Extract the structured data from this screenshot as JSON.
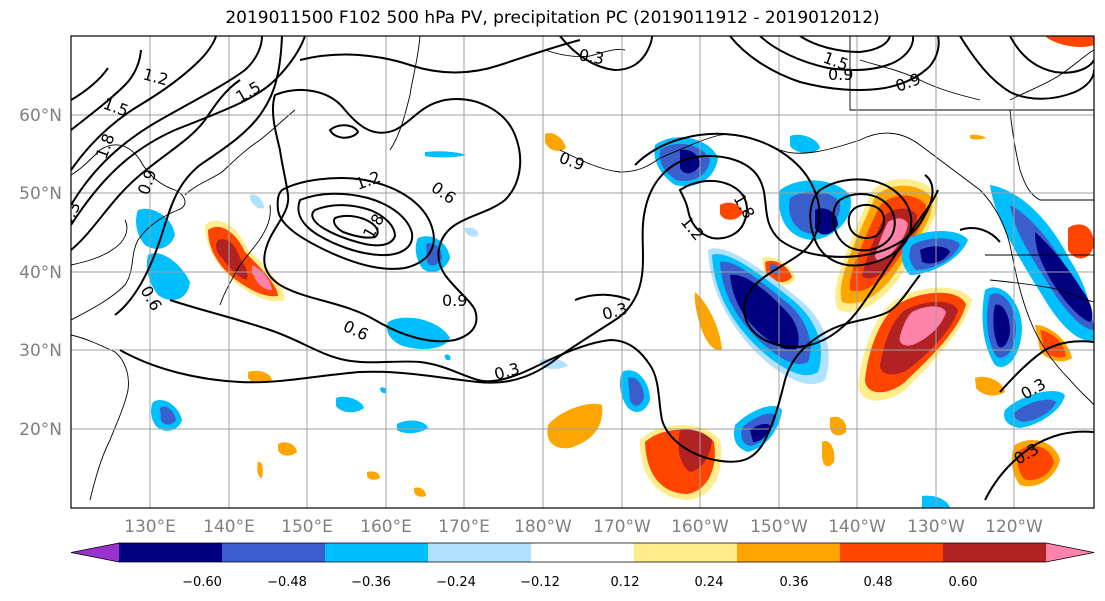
{
  "title": "2019011500 F102 500 hPa PV, precipitation PC (2019011912 - 2019012012)",
  "map": {
    "lat_labels": [
      "60°N",
      "50°N",
      "40°N",
      "30°N",
      "20°N"
    ],
    "lon_labels": [
      "130°E",
      "140°E",
      "150°E",
      "160°E",
      "170°E",
      "180°W",
      "170°W",
      "160°W",
      "150°W",
      "140°W",
      "130°W",
      "120°W"
    ],
    "contour_labels": [
      "1.2",
      "1.5",
      "1.8",
      "0.9",
      "0.6",
      "0.3",
      "1.5",
      "1.8",
      "1.2",
      "0.6",
      "0.9",
      "0.3",
      "0.3",
      "0.6",
      "0.9",
      "1.2",
      "1.8",
      "1.5",
      "0.9",
      "0.9",
      "0.3",
      "0.3",
      "0.3"
    ]
  },
  "colorbar": {
    "tick_labels": [
      "−0.60",
      "−0.48",
      "−0.36",
      "−0.24",
      "−0.12",
      "0.12",
      "0.24",
      "0.36",
      "0.48",
      "0.60"
    ],
    "colors": [
      "#9932cc",
      "#000080",
      "#3a5fcd",
      "#00bfff",
      "#b0e2ff",
      "#ffffff",
      "#ffec8b",
      "#ffa500",
      "#ff4500",
      "#b22222",
      "#ff82ab"
    ]
  }
}
